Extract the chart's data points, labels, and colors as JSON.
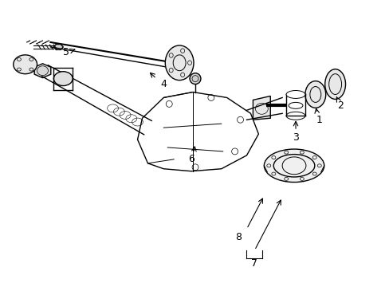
{
  "title": "",
  "bg_color": "#ffffff",
  "line_color": "#000000",
  "label_color": "#000000",
  "figsize": [
    4.89,
    3.6
  ],
  "dpi": 100
}
